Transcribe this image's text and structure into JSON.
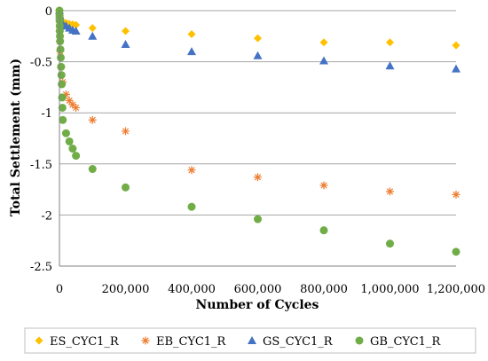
{
  "chart_data": {
    "type": "scatter",
    "xlabel": "Number of Cycles",
    "ylabel": "Total Settlement (mm)",
    "xlim": [
      0,
      1200000
    ],
    "ylim": [
      -2.5,
      0
    ],
    "x_ticks": [
      "0",
      "200,000",
      "400,000",
      "600,000",
      "800,000",
      "1,000,000",
      "1,200,000"
    ],
    "y_ticks": [
      "0",
      "-0.5",
      "-1",
      "-1.5",
      "-2",
      "-2.5"
    ],
    "grid": "horizontal",
    "legend_position": "bottom",
    "series": [
      {
        "name": "ES_CYC1_R",
        "color": "#FFC000",
        "marker": "diamond",
        "points": [
          [
            0,
            0
          ],
          [
            500,
            -0.03
          ],
          [
            1000,
            -0.05
          ],
          [
            2000,
            -0.07
          ],
          [
            5000,
            -0.09
          ],
          [
            10000,
            -0.11
          ],
          [
            20000,
            -0.12
          ],
          [
            30000,
            -0.13
          ],
          [
            40000,
            -0.135
          ],
          [
            50000,
            -0.14
          ],
          [
            100000,
            -0.17
          ],
          [
            200000,
            -0.2
          ],
          [
            400000,
            -0.23
          ],
          [
            600000,
            -0.27
          ],
          [
            800000,
            -0.31
          ],
          [
            1000000,
            -0.31
          ],
          [
            1200000,
            -0.34
          ]
        ]
      },
      {
        "name": "EB_CYC1_R",
        "color": "#ED7D31",
        "marker": "star",
        "points": [
          [
            0,
            0
          ],
          [
            500,
            -0.2
          ],
          [
            1000,
            -0.3
          ],
          [
            2000,
            -0.4
          ],
          [
            5000,
            -0.55
          ],
          [
            10000,
            -0.7
          ],
          [
            20000,
            -0.82
          ],
          [
            30000,
            -0.88
          ],
          [
            40000,
            -0.92
          ],
          [
            50000,
            -0.95
          ],
          [
            100000,
            -1.07
          ],
          [
            200000,
            -1.18
          ],
          [
            400000,
            -1.56
          ],
          [
            600000,
            -1.63
          ],
          [
            800000,
            -1.71
          ],
          [
            1000000,
            -1.77
          ],
          [
            1200000,
            -1.8
          ]
        ]
      },
      {
        "name": "GS_CYC1_R",
        "color": "#4472C4",
        "marker": "triangle",
        "points": [
          [
            0,
            0
          ],
          [
            500,
            -0.04
          ],
          [
            1000,
            -0.06
          ],
          [
            2000,
            -0.08
          ],
          [
            5000,
            -0.1
          ],
          [
            10000,
            -0.13
          ],
          [
            20000,
            -0.15
          ],
          [
            30000,
            -0.17
          ],
          [
            40000,
            -0.19
          ],
          [
            50000,
            -0.2
          ],
          [
            100000,
            -0.25
          ],
          [
            200000,
            -0.33
          ],
          [
            400000,
            -0.4
          ],
          [
            600000,
            -0.44
          ],
          [
            800000,
            -0.49
          ],
          [
            1000000,
            -0.54
          ],
          [
            1200000,
            -0.57
          ]
        ]
      },
      {
        "name": "GB_CYC1_R",
        "color": "#70AD47",
        "marker": "circle",
        "points": [
          [
            0,
            0
          ],
          [
            200,
            -0.05
          ],
          [
            500,
            -0.1
          ],
          [
            800,
            -0.15
          ],
          [
            1000,
            -0.2
          ],
          [
            1500,
            -0.25
          ],
          [
            2000,
            -0.3
          ],
          [
            3000,
            -0.38
          ],
          [
            4000,
            -0.46
          ],
          [
            5000,
            -0.55
          ],
          [
            6000,
            -0.63
          ],
          [
            7000,
            -0.72
          ],
          [
            8000,
            -0.85
          ],
          [
            9000,
            -0.95
          ],
          [
            10000,
            -1.07
          ],
          [
            20000,
            -1.2
          ],
          [
            30000,
            -1.28
          ],
          [
            40000,
            -1.35
          ],
          [
            50000,
            -1.42
          ],
          [
            100000,
            -1.55
          ],
          [
            200000,
            -1.73
          ],
          [
            400000,
            -1.92
          ],
          [
            600000,
            -2.04
          ],
          [
            800000,
            -2.15
          ],
          [
            1000000,
            -2.28
          ],
          [
            1200000,
            -2.36
          ]
        ]
      }
    ]
  }
}
